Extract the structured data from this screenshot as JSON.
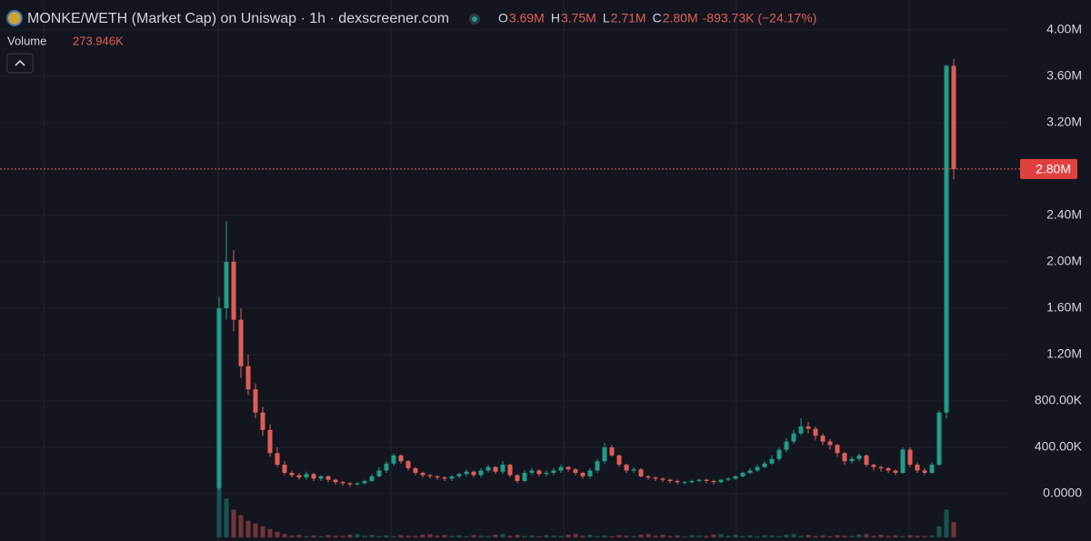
{
  "chart_data": {
    "type": "candlestick",
    "title": "MONKE/WETH (Market Cap) on Uniswap · 1h · dexscreener.com",
    "ohlc_legend": [
      {
        "key": "O",
        "value": "3.69M"
      },
      {
        "key": "H",
        "value": "3.75M"
      },
      {
        "key": "L",
        "value": "2.71M"
      },
      {
        "key": "C",
        "value": "2.80M"
      }
    ],
    "change": "-893.73K (−24.17%)",
    "volume_label": "Volume",
    "volume_value": "273.946K",
    "up_color": "#1f9d8b",
    "down_color": "#e05d57",
    "ylim": [
      -400000,
      4250000
    ],
    "yticks": [
      {
        "value": 4000000,
        "label": "4.00M"
      },
      {
        "value": 3600000,
        "label": "3.60M"
      },
      {
        "value": 3200000,
        "label": "3.20M"
      },
      {
        "value": 2400000,
        "label": "2.40M"
      },
      {
        "value": 2000000,
        "label": "2.00M"
      },
      {
        "value": 1600000,
        "label": "1.60M"
      },
      {
        "value": 1200000,
        "label": "1.20M"
      },
      {
        "value": 800000,
        "label": "800.00K"
      },
      {
        "value": 400000,
        "label": "400.00K"
      },
      {
        "value": 0,
        "label": "0.0000"
      }
    ],
    "price_line": {
      "value": 2800000,
      "label": "2.80M"
    },
    "open": [
      50000,
      1600000,
      2000000,
      1500000,
      1100000,
      900000,
      700000,
      550000,
      350000,
      250000,
      180000,
      160000,
      140000,
      170000,
      130000,
      150000,
      120000,
      100000,
      90000,
      80000,
      90000,
      110000,
      150000,
      200000,
      260000,
      330000,
      280000,
      220000,
      180000,
      160000,
      150000,
      140000,
      130000,
      150000,
      170000,
      190000,
      160000,
      200000,
      230000,
      190000,
      250000,
      160000,
      110000,
      180000,
      200000,
      170000,
      180000,
      200000,
      230000,
      210000,
      180000,
      150000,
      200000,
      280000,
      400000,
      330000,
      250000,
      200000,
      210000,
      150000,
      140000,
      130000,
      120000,
      110000,
      100000,
      100000,
      110000,
      120000,
      110000,
      100000,
      120000,
      130000,
      150000,
      180000,
      200000,
      230000,
      260000,
      300000,
      380000,
      450000,
      520000,
      580000,
      560000,
      500000,
      450000,
      420000,
      350000,
      280000,
      300000,
      330000,
      250000,
      230000,
      220000,
      200000,
      180000,
      380000,
      250000,
      200000,
      180000,
      250000,
      700000,
      3690000
    ],
    "high": [
      1700000,
      2350000,
      2100000,
      1600000,
      1200000,
      950000,
      750000,
      600000,
      400000,
      280000,
      200000,
      180000,
      190000,
      180000,
      160000,
      160000,
      130000,
      110000,
      100000,
      100000,
      120000,
      170000,
      230000,
      280000,
      350000,
      340000,
      290000,
      230000,
      190000,
      170000,
      160000,
      150000,
      160000,
      180000,
      210000,
      200000,
      220000,
      250000,
      240000,
      280000,
      260000,
      170000,
      200000,
      220000,
      210000,
      200000,
      220000,
      250000,
      240000,
      220000,
      190000,
      220000,
      300000,
      440000,
      420000,
      340000,
      260000,
      230000,
      220000,
      160000,
      150000,
      140000,
      130000,
      120000,
      110000,
      120000,
      130000,
      130000,
      120000,
      130000,
      140000,
      160000,
      190000,
      220000,
      250000,
      280000,
      330000,
      400000,
      480000,
      550000,
      650000,
      620000,
      580000,
      520000,
      470000,
      430000,
      360000,
      320000,
      350000,
      340000,
      260000,
      240000,
      230000,
      210000,
      400000,
      400000,
      270000,
      220000,
      270000,
      720000,
      3700000,
      3750000
    ],
    "low": [
      30000,
      1500000,
      1400000,
      1000000,
      850000,
      650000,
      500000,
      320000,
      230000,
      160000,
      140000,
      120000,
      120000,
      110000,
      110000,
      100000,
      80000,
      70000,
      60000,
      70000,
      80000,
      100000,
      140000,
      180000,
      240000,
      260000,
      200000,
      160000,
      140000,
      130000,
      120000,
      110000,
      110000,
      130000,
      150000,
      140000,
      140000,
      180000,
      170000,
      170000,
      140000,
      90000,
      100000,
      160000,
      150000,
      150000,
      160000,
      180000,
      190000,
      160000,
      130000,
      130000,
      180000,
      260000,
      320000,
      230000,
      180000,
      180000,
      140000,
      120000,
      110000,
      100000,
      90000,
      80000,
      80000,
      90000,
      100000,
      90000,
      80000,
      90000,
      110000,
      120000,
      140000,
      170000,
      190000,
      220000,
      250000,
      280000,
      360000,
      430000,
      500000,
      520000,
      460000,
      420000,
      380000,
      320000,
      250000,
      260000,
      280000,
      230000,
      200000,
      190000,
      180000,
      160000,
      170000,
      230000,
      180000,
      160000,
      170000,
      240000,
      650000,
      2710000
    ],
    "close": [
      1600000,
      2000000,
      1500000,
      1100000,
      900000,
      700000,
      550000,
      350000,
      250000,
      180000,
      160000,
      140000,
      170000,
      130000,
      150000,
      120000,
      100000,
      90000,
      80000,
      90000,
      110000,
      150000,
      200000,
      260000,
      330000,
      280000,
      220000,
      180000,
      160000,
      150000,
      140000,
      130000,
      150000,
      170000,
      190000,
      160000,
      200000,
      230000,
      190000,
      250000,
      160000,
      110000,
      180000,
      200000,
      170000,
      180000,
      200000,
      230000,
      210000,
      180000,
      150000,
      200000,
      280000,
      400000,
      330000,
      250000,
      200000,
      210000,
      150000,
      140000,
      130000,
      120000,
      110000,
      100000,
      100000,
      110000,
      120000,
      110000,
      100000,
      120000,
      130000,
      150000,
      180000,
      200000,
      230000,
      260000,
      300000,
      380000,
      450000,
      520000,
      580000,
      560000,
      500000,
      450000,
      420000,
      350000,
      280000,
      300000,
      330000,
      250000,
      230000,
      220000,
      200000,
      180000,
      380000,
      250000,
      200000,
      180000,
      250000,
      700000,
      3690000,
      2800000
    ],
    "volume": [
      900000,
      700000,
      500000,
      400000,
      300000,
      250000,
      200000,
      150000,
      100000,
      60000,
      30000,
      45000,
      25000,
      35000,
      20000,
      40000,
      30000,
      25000,
      50000,
      60000,
      30000,
      45000,
      25000,
      35000,
      20000,
      40000,
      30000,
      25000,
      50000,
      60000,
      30000,
      45000,
      25000,
      35000,
      20000,
      40000,
      30000,
      25000,
      50000,
      60000,
      30000,
      45000,
      25000,
      35000,
      20000,
      40000,
      30000,
      25000,
      50000,
      60000,
      30000,
      45000,
      25000,
      35000,
      20000,
      40000,
      30000,
      25000,
      50000,
      60000,
      30000,
      45000,
      25000,
      35000,
      20000,
      40000,
      30000,
      25000,
      50000,
      60000,
      30000,
      45000,
      25000,
      35000,
      20000,
      40000,
      30000,
      25000,
      50000,
      60000,
      30000,
      45000,
      25000,
      35000,
      20000,
      40000,
      30000,
      25000,
      50000,
      60000,
      30000,
      45000,
      25000,
      35000,
      20000,
      40000,
      30000,
      25000,
      30000,
      200000,
      500000,
      273946
    ]
  }
}
